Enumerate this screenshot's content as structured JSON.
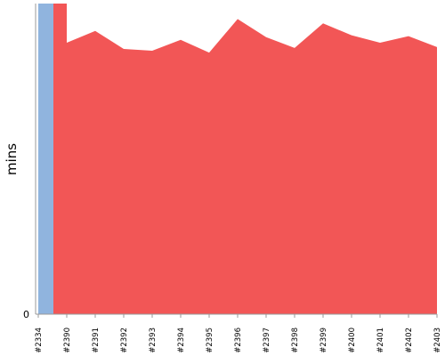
{
  "chart_data": {
    "type": "area",
    "title": "",
    "xlabel": "",
    "ylabel": "mins",
    "x_ticks": [
      "#2334",
      "#2390",
      "#2391",
      "#2392",
      "#2393",
      "#2394",
      "#2395",
      "#2396",
      "#2397",
      "#2398",
      "#2399",
      "#2400",
      "#2401",
      "#2402",
      "#2403"
    ],
    "y_ticks": [
      {
        "label": "0",
        "value": 0
      }
    ],
    "ylim": [
      0,
      100
    ],
    "grid": false,
    "legend": "none",
    "series": [
      {
        "color": "#90b4de",
        "points": [
          {
            "x": "#2334",
            "y": 100
          },
          {
            "x": "#2334.5",
            "y": 100
          }
        ]
      },
      {
        "color": "#f25656",
        "points": [
          {
            "x": "#2334.5",
            "y": 100
          },
          {
            "x": "#2390",
            "y": 100
          },
          {
            "x": "#2390",
            "y": 87.4
          },
          {
            "x": "#2391",
            "y": 91.2
          },
          {
            "x": "#2392",
            "y": 85.4
          },
          {
            "x": "#2393",
            "y": 84.8
          },
          {
            "x": "#2394",
            "y": 88.3
          },
          {
            "x": "#2395",
            "y": 84.2
          },
          {
            "x": "#2396",
            "y": 95.0
          },
          {
            "x": "#2397",
            "y": 89.2
          },
          {
            "x": "#2398",
            "y": 85.7
          },
          {
            "x": "#2399",
            "y": 93.6
          },
          {
            "x": "#2400",
            "y": 89.8
          },
          {
            "x": "#2401",
            "y": 87.4
          },
          {
            "x": "#2402",
            "y": 89.5
          },
          {
            "x": "#2403",
            "y": 86.0
          }
        ]
      }
    ]
  }
}
